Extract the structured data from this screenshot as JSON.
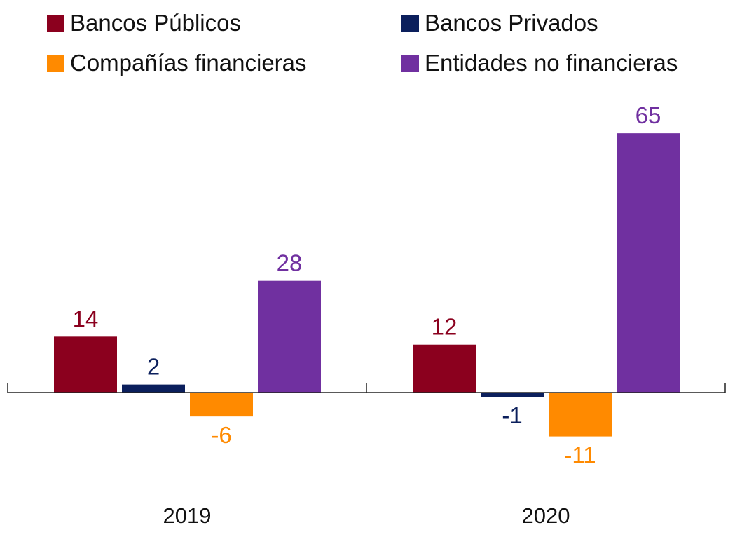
{
  "chart_data": {
    "type": "bar",
    "title": "",
    "xlabel": "",
    "ylabel": "",
    "categories": [
      "2019",
      "2020"
    ],
    "series": [
      {
        "name": "Bancos Públicos",
        "color": "#8B001E",
        "values": [
          14,
          12
        ]
      },
      {
        "name": "Bancos Privados",
        "color": "#0B1F5C",
        "values": [
          2,
          -1
        ]
      },
      {
        "name": "Compañías financieras",
        "color": "#FF8A00",
        "values": [
          -6,
          -11
        ]
      },
      {
        "name": "Entidades no financieras",
        "color": "#7030A0",
        "values": [
          28,
          65
        ]
      }
    ],
    "ylim": [
      -20,
      70
    ],
    "grid": false,
    "legend_position": "top"
  }
}
